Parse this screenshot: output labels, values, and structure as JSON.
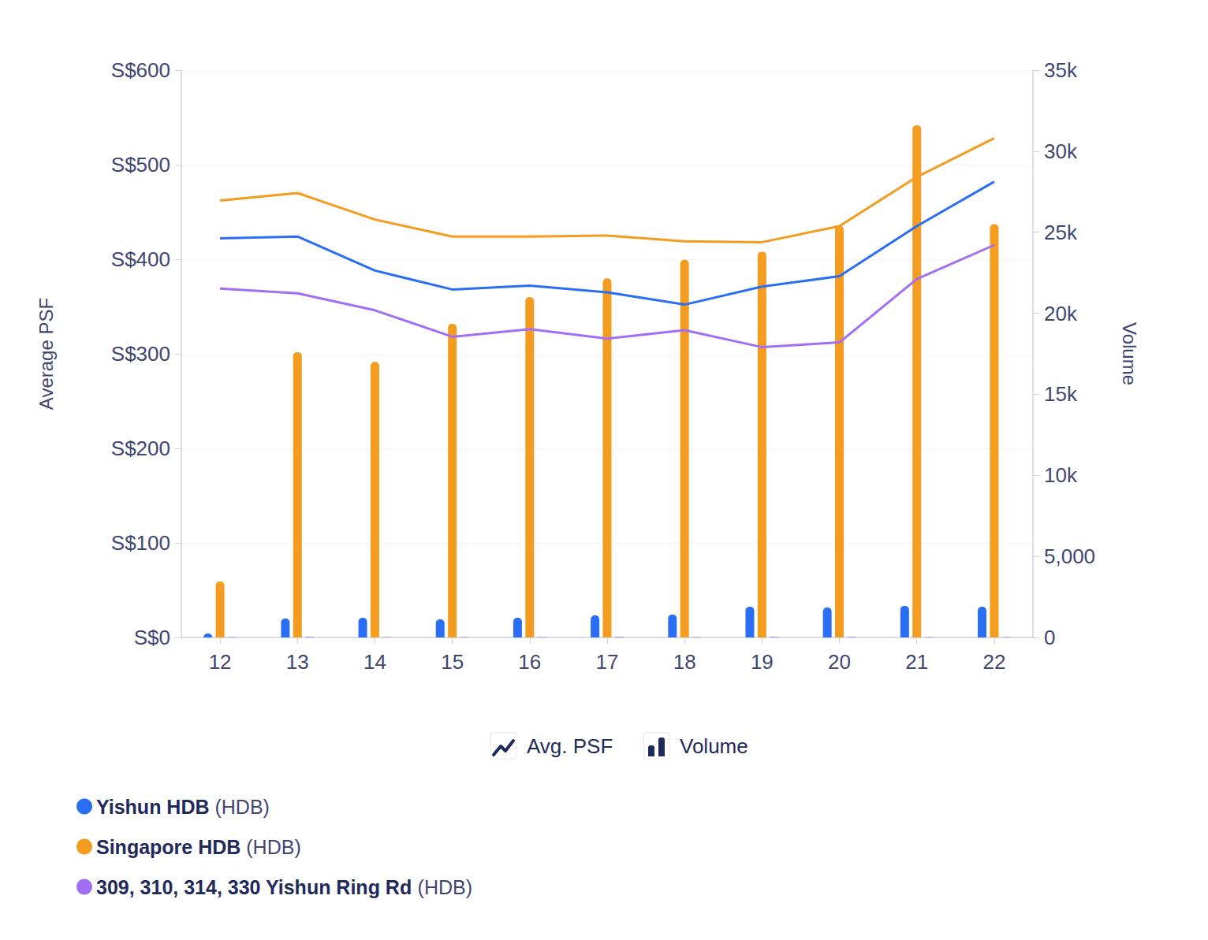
{
  "chart_data": {
    "type": "combo",
    "categories": [
      "12",
      "13",
      "14",
      "15",
      "16",
      "17",
      "18",
      "19",
      "20",
      "21",
      "22"
    ],
    "y_label": "Average PSF",
    "y2_label": "Volume",
    "ylim": [
      0,
      600
    ],
    "yticks": [
      {
        "value": 0,
        "label": "S$0"
      },
      {
        "value": 100,
        "label": "S$100"
      },
      {
        "value": 200,
        "label": "S$200"
      },
      {
        "value": 300,
        "label": "S$300"
      },
      {
        "value": 400,
        "label": "S$400"
      },
      {
        "value": 500,
        "label": "S$500"
      },
      {
        "value": 600,
        "label": "S$600"
      }
    ],
    "y2lim": [
      0,
      35000
    ],
    "y2ticks": [
      0,
      {
        "value": 5000,
        "label": "5,000"
      },
      {
        "value": 10000,
        "label": "10k"
      },
      {
        "value": 15000,
        "label": "15k"
      },
      {
        "value": 20000,
        "label": "20k"
      },
      {
        "value": 25000,
        "label": "25k"
      },
      {
        "value": 30000,
        "label": "30k"
      },
      {
        "value": 35000,
        "label": "35k"
      }
    ],
    "grid": true,
    "legend": "bottom-left",
    "type_legend": [
      {
        "type": "line",
        "label": "Avg. PSF"
      },
      {
        "type": "bar",
        "label": "Volume"
      }
    ],
    "series": [
      {
        "name": "Yishun HDB (HDB)",
        "type": "line",
        "color": "#2a6ef5",
        "values": [
          422,
          424,
          388,
          368,
          372,
          365,
          352,
          371,
          382,
          435,
          482
        ]
      },
      {
        "name": "Singapore HDB (HDB)",
        "type": "line",
        "color": "#f39c1f",
        "values": [
          462,
          470,
          442,
          424,
          424,
          425,
          419,
          418,
          435,
          487,
          528
        ]
      },
      {
        "name": "309, 310, 314, 330 Yishun Ring Rd (HDB)",
        "type": "line",
        "color": "#a26ef6",
        "values": [
          369,
          364,
          346,
          318,
          326,
          316,
          325,
          307,
          312,
          379,
          415
        ]
      },
      {
        "name": "Yishun HDB (HDB)",
        "type": "bar",
        "axis": "y2",
        "color": "#2a6ef5",
        "values": [
          240,
          1170,
          1215,
          1120,
          1215,
          1360,
          1410,
          1900,
          1850,
          1950,
          1900
        ]
      },
      {
        "name": "Singapore HDB (HDB)",
        "type": "bar",
        "axis": "y2",
        "color": "#f39c1f",
        "values": [
          3450,
          17600,
          17000,
          19350,
          21000,
          22150,
          23300,
          23800,
          25400,
          31600,
          25500
        ]
      },
      {
        "name": "309, 310, 314, 330 Yishun Ring Rd (HDB)",
        "type": "bar",
        "axis": "y2",
        "color": "#a26ef6",
        "values": [
          20,
          40,
          30,
          25,
          30,
          35,
          30,
          40,
          35,
          30,
          25
        ]
      }
    ]
  }
}
